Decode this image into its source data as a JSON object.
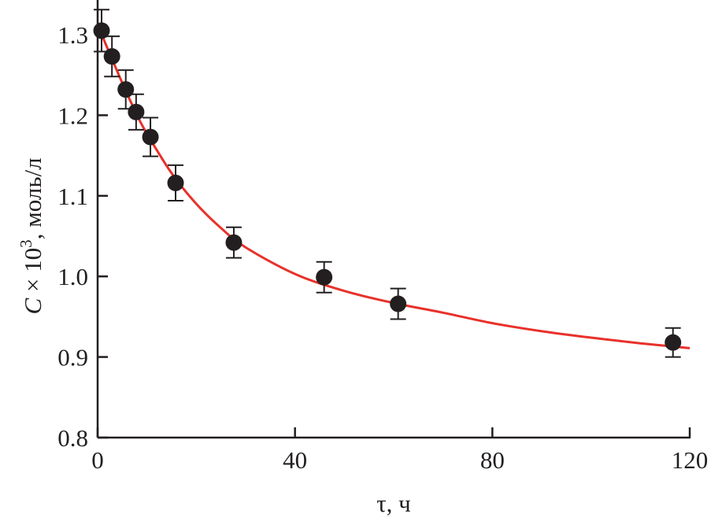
{
  "chart_data": {
    "type": "scatter",
    "title": "",
    "xlabel": "τ, ч",
    "ylabel_var": "C",
    "ylabel_rest": " × 10",
    "ylabel_exp": "3",
    "ylabel_unit": ", моль/л",
    "xlim": [
      0,
      120
    ],
    "ylim": [
      0.8,
      1.343
    ],
    "xticks": [
      "0",
      "40",
      "80",
      "120"
    ],
    "xtick_values": [
      0,
      40,
      80,
      120
    ],
    "yticks": [
      "0.8",
      "0.9",
      "1.0",
      "1.1",
      "1.2",
      "1.3"
    ],
    "ytick_values": [
      0.8,
      0.9,
      1.0,
      1.1,
      1.2,
      1.3
    ],
    "grid": false,
    "points": {
      "x": [
        0.8,
        2.9,
        5.7,
        7.8,
        10.7,
        15.8,
        27.6,
        45.9,
        60.9,
        116.6
      ],
      "y": [
        1.305,
        1.273,
        1.232,
        1.204,
        1.173,
        1.116,
        1.042,
        0.999,
        0.966,
        0.918
      ],
      "err": [
        0.026,
        0.025,
        0.024,
        0.022,
        0.024,
        0.022,
        0.019,
        0.019,
        0.019,
        0.018
      ],
      "color": "#231f20"
    },
    "fit_curve": {
      "x": [
        0,
        2,
        5,
        8,
        10,
        15,
        20,
        25,
        30,
        40,
        50,
        60,
        70,
        80,
        90,
        100,
        110,
        120
      ],
      "y": [
        1.312,
        1.283,
        1.24,
        1.2,
        1.177,
        1.128,
        1.09,
        1.06,
        1.036,
        1.003,
        0.982,
        0.967,
        0.955,
        0.942,
        0.932,
        0.924,
        0.917,
        0.911
      ],
      "color": "#e8312a"
    }
  }
}
